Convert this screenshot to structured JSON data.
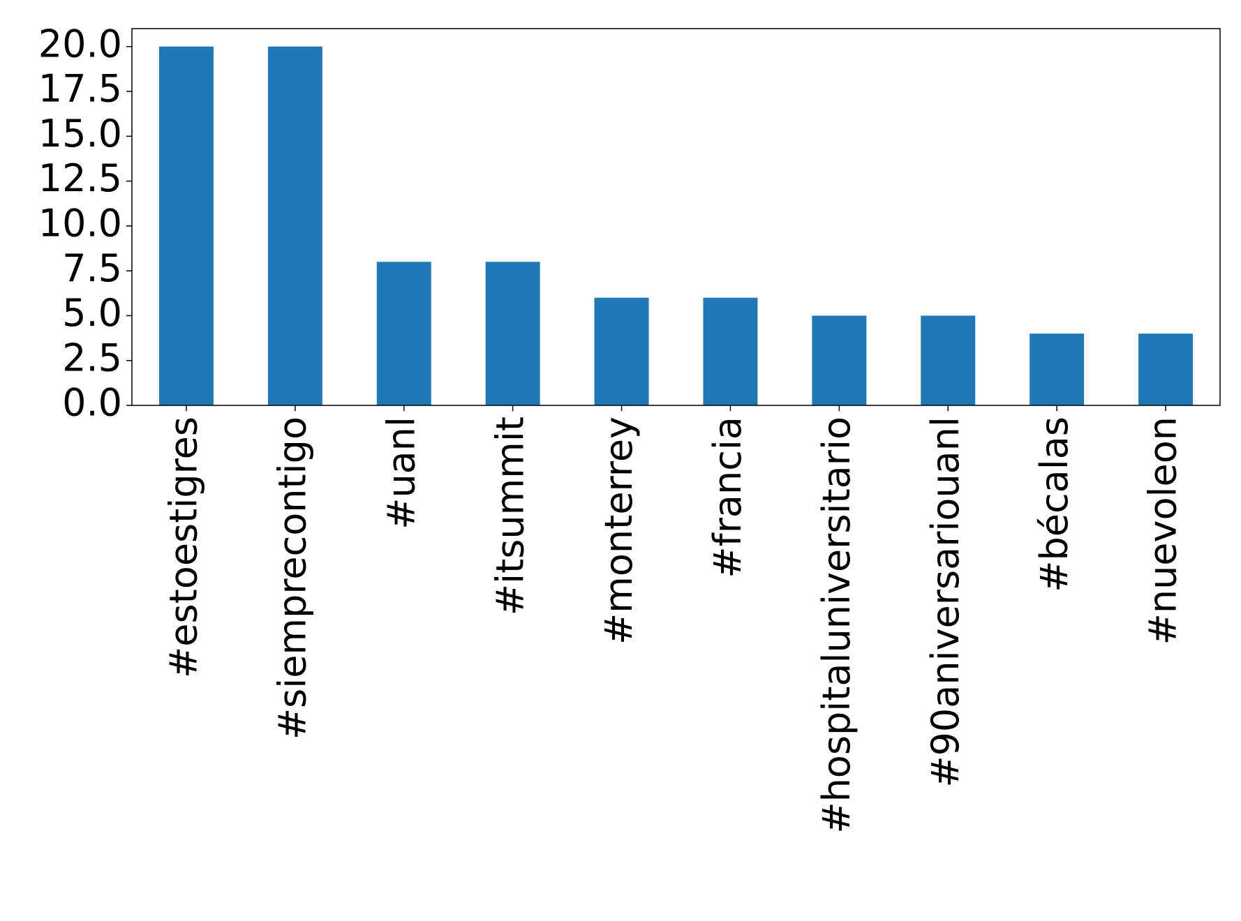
{
  "chart_data": {
    "type": "bar",
    "categories": [
      "#estoestigres",
      "#siemprecontigo",
      "#uanl",
      "#itsummit",
      "#monterrey",
      "#francia",
      "#hospitaluniversitario",
      "#90aniversariouanl",
      "#bécalas",
      "#nuevoleon"
    ],
    "values": [
      20,
      20,
      8,
      8,
      6,
      6,
      5,
      5,
      4,
      4
    ],
    "color": "#1f77b4",
    "ylim": [
      0,
      21
    ],
    "yticks": [
      {
        "value": 0,
        "label": "0.0"
      },
      2.5,
      {
        "value": 5,
        "label": "5.0"
      },
      7.5,
      {
        "value": 10,
        "label": "10.0"
      },
      12.5,
      {
        "value": 15,
        "label": "15.0"
      },
      17.5,
      {
        "value": 20,
        "label": "20.0"
      }
    ],
    "grid": false
  }
}
